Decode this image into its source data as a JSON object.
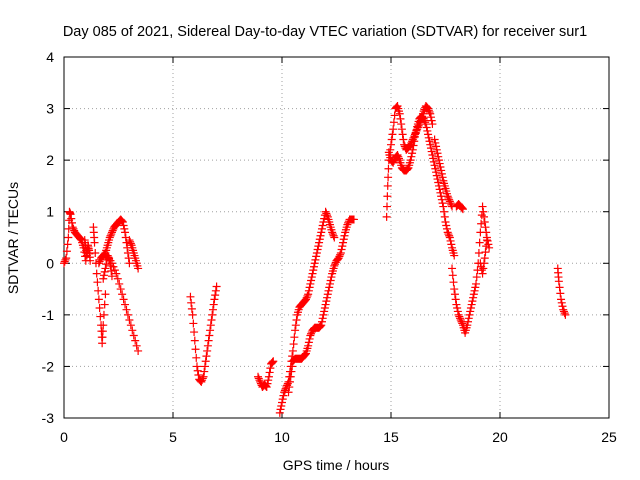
{
  "chart_data": {
    "type": "scatter",
    "title": "Day 085 of 2021, Sidereal Day-to-day VTEC variation (SDTVAR) for receiver sur1",
    "xlabel": "GPS time / hours",
    "ylabel": "SDTVAR / TECUs",
    "xlim": [
      0,
      25
    ],
    "ylim": [
      -3,
      4
    ],
    "x_ticks": [
      "0",
      "5",
      "10",
      "15",
      "20",
      "25"
    ],
    "y_ticks": [
      "-3",
      "-2",
      "-1",
      "0",
      "1",
      "2",
      "3",
      "4"
    ],
    "grid": true,
    "marker": "+",
    "color": "#ff0000",
    "segments": [
      {
        "x": [
          0.0,
          0.1,
          0.2,
          0.25,
          0.3,
          0.4,
          0.5,
          0.6,
          0.7,
          0.8,
          0.9,
          1.0
        ],
        "y": [
          0.0,
          0.1,
          0.5,
          1.0,
          0.95,
          0.7,
          0.6,
          0.55,
          0.5,
          0.45,
          0.3,
          0.05
        ]
      },
      {
        "x": [
          0.95,
          1.0,
          1.05,
          1.1,
          1.15,
          1.2
        ],
        "y": [
          0.45,
          0.3,
          0.15,
          0.35,
          0.25,
          0.05
        ]
      },
      {
        "x": [
          1.35,
          1.4,
          1.5,
          1.6,
          1.7,
          1.75,
          1.8,
          1.9
        ],
        "y": [
          0.7,
          0.4,
          -0.2,
          -0.7,
          -1.2,
          -1.55,
          -1.2,
          -0.6
        ]
      },
      {
        "x": [
          1.6,
          1.7,
          1.8,
          1.9,
          2.0,
          2.1,
          2.2,
          2.3,
          2.4,
          2.5,
          2.6,
          2.7,
          2.8,
          2.9,
          3.0
        ],
        "y": [
          0.0,
          0.1,
          0.15,
          0.2,
          0.35,
          0.5,
          0.6,
          0.7,
          0.75,
          0.8,
          0.85,
          0.8,
          0.6,
          0.3,
          0.0
        ]
      },
      {
        "x": [
          2.0,
          2.2,
          2.4,
          2.6,
          2.8,
          3.0,
          3.2,
          3.4
        ],
        "y": [
          0.15,
          0.0,
          -0.2,
          -0.5,
          -0.8,
          -1.1,
          -1.4,
          -1.7
        ]
      },
      {
        "x": [
          3.0,
          3.1,
          3.2,
          3.3,
          3.4
        ],
        "y": [
          0.45,
          0.35,
          0.2,
          0.05,
          -0.1
        ]
      },
      {
        "x": [
          1.8,
          1.9,
          2.0,
          2.1,
          2.2
        ],
        "y": [
          -0.3,
          -0.1,
          0.15,
          0.05,
          -0.25
        ]
      },
      {
        "x": [
          5.8,
          5.9,
          6.0,
          6.1,
          6.2,
          6.3,
          6.4,
          6.5,
          6.6,
          6.7,
          6.8,
          6.9,
          7.0
        ],
        "y": [
          -0.65,
          -1.0,
          -1.5,
          -2.0,
          -2.25,
          -2.3,
          -2.2,
          -1.9,
          -1.6,
          -1.3,
          -1.0,
          -0.7,
          -0.45
        ]
      },
      {
        "x": [
          8.9,
          9.0,
          9.1,
          9.2,
          9.3,
          9.4,
          9.5,
          9.6
        ],
        "y": [
          -2.2,
          -2.3,
          -2.4,
          -2.35,
          -2.4,
          -2.2,
          -1.95,
          -1.9
        ]
      },
      {
        "x": [
          9.9,
          10.0,
          10.1,
          10.2,
          10.3,
          10.4,
          10.5,
          10.6,
          10.7,
          10.8,
          10.9,
          11.0,
          11.1,
          11.2,
          11.3,
          11.4,
          11.5,
          11.6,
          11.7,
          11.8,
          11.9,
          12.0,
          12.1,
          12.2,
          12.3,
          12.4
        ],
        "y": [
          -2.9,
          -2.7,
          -2.5,
          -2.4,
          -2.3,
          -2.0,
          -1.7,
          -1.3,
          -1.0,
          -0.85,
          -0.8,
          -0.75,
          -0.7,
          -0.6,
          -0.4,
          -0.2,
          0.0,
          0.2,
          0.4,
          0.6,
          0.8,
          1.0,
          0.9,
          0.75,
          0.6,
          0.5
        ]
      },
      {
        "x": [
          10.3,
          10.4,
          10.5,
          10.6,
          10.7,
          10.8,
          10.9,
          11.0,
          11.1,
          11.2,
          11.3,
          11.4,
          11.5,
          11.6,
          11.7,
          11.8,
          11.9,
          12.0,
          12.1,
          12.2,
          12.3,
          12.4,
          12.5,
          12.6,
          12.7,
          12.8,
          12.9,
          13.0,
          13.1,
          13.2,
          13.3
        ],
        "y": [
          -2.5,
          -2.2,
          -1.9,
          -1.85,
          -1.85,
          -1.85,
          -1.85,
          -1.8,
          -1.75,
          -1.6,
          -1.4,
          -1.3,
          -1.25,
          -1.25,
          -1.25,
          -1.2,
          -1.0,
          -0.8,
          -0.6,
          -0.4,
          -0.2,
          -0.05,
          0.05,
          0.1,
          0.2,
          0.4,
          0.6,
          0.75,
          0.85,
          0.85,
          0.85
        ]
      },
      {
        "x": [
          14.8,
          14.85,
          14.9,
          15.0,
          15.1,
          15.2,
          15.3,
          15.4,
          15.5,
          15.6,
          15.7,
          15.8,
          15.9,
          16.0,
          16.1,
          16.2,
          16.3,
          16.4,
          16.5,
          16.6,
          16.7,
          16.8,
          16.9
        ],
        "y": [
          0.9,
          1.5,
          2.0,
          2.3,
          2.6,
          3.0,
          3.05,
          2.9,
          2.6,
          2.3,
          2.2,
          2.25,
          2.3,
          2.4,
          2.5,
          2.6,
          2.7,
          2.8,
          2.95,
          3.05,
          3.0,
          2.9,
          2.7
        ]
      },
      {
        "x": [
          14.9,
          15.0,
          15.1,
          15.2,
          15.3,
          15.4,
          15.5,
          15.6,
          15.7,
          15.8,
          15.9,
          16.0,
          16.1,
          16.2,
          16.3,
          16.4,
          16.5,
          16.6,
          16.7,
          16.8,
          16.9,
          17.0,
          17.1,
          17.2,
          17.3,
          17.4,
          17.5,
          17.6,
          17.7,
          17.8,
          17.9
        ],
        "y": [
          2.15,
          2.0,
          1.95,
          2.05,
          2.1,
          2.0,
          1.85,
          1.8,
          1.8,
          1.85,
          2.0,
          2.2,
          2.45,
          2.65,
          2.8,
          2.85,
          2.8,
          2.7,
          2.5,
          2.3,
          2.1,
          1.9,
          1.7,
          1.5,
          1.3,
          1.1,
          0.8,
          0.6,
          0.5,
          0.3,
          0.15
        ]
      },
      {
        "x": [
          17.0,
          17.1,
          17.2,
          17.3,
          17.4,
          17.5,
          17.6,
          17.7,
          17.8
        ],
        "y": [
          2.4,
          2.2,
          2.0,
          1.8,
          1.6,
          1.45,
          1.3,
          1.2,
          1.1
        ]
      },
      {
        "x": [
          17.8,
          17.9,
          18.0,
          18.1,
          18.2,
          18.3,
          18.4,
          18.5,
          18.6,
          18.7,
          18.8,
          18.9,
          19.0,
          19.1,
          19.2,
          19.3,
          19.4,
          19.5
        ],
        "y": [
          -0.1,
          -0.5,
          -0.8,
          -1.0,
          -1.1,
          -1.2,
          -1.35,
          -1.2,
          -1.0,
          -0.8,
          -0.6,
          -0.4,
          0.0,
          0.6,
          1.1,
          0.8,
          0.5,
          0.3
        ]
      },
      {
        "x": [
          18.0,
          18.1,
          18.2,
          18.3
        ],
        "y": [
          1.1,
          1.15,
          1.1,
          1.05
        ]
      },
      {
        "x": [
          19.1,
          19.2,
          19.3,
          19.4
        ],
        "y": [
          0.0,
          -0.2,
          0.1,
          0.45
        ]
      },
      {
        "x": [
          22.65,
          22.7,
          22.8,
          22.9,
          23.0
        ],
        "y": [
          -0.1,
          -0.35,
          -0.7,
          -0.9,
          -1.0
        ]
      }
    ]
  }
}
